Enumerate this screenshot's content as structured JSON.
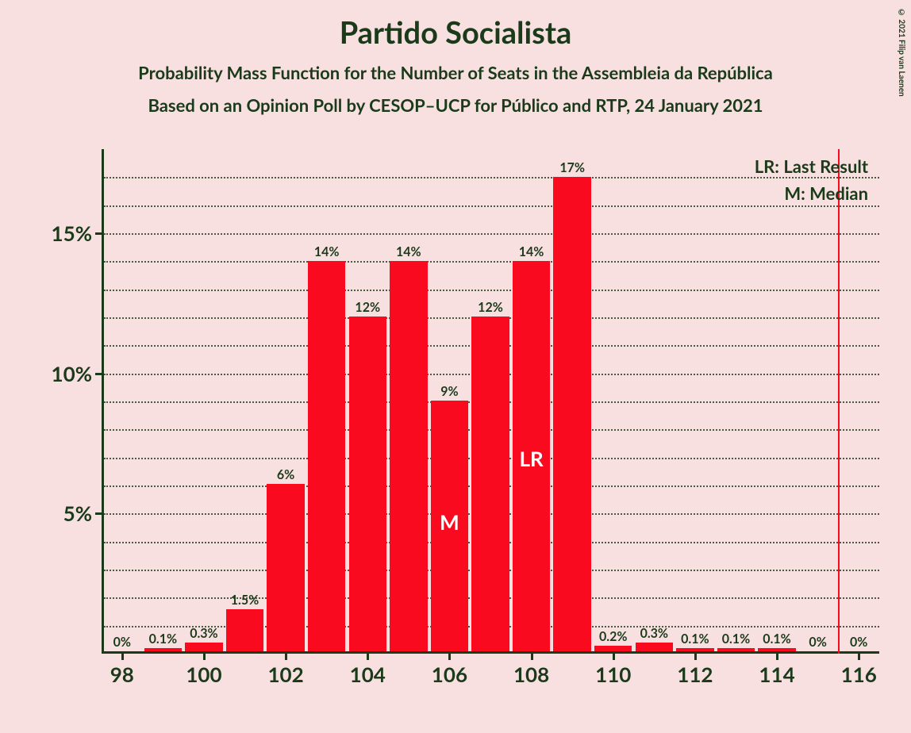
{
  "title": "Partido Socialista",
  "subtitle1": "Probability Mass Function for the Number of Seats in the Assembleia da República",
  "subtitle2": "Based on an Opinion Poll by CESOP–UCP for Público and RTP, 24 January 2021",
  "copyright": "© 2021 Filip van Laenen",
  "legend": {
    "lr": "LR: Last Result",
    "m": "M: Median"
  },
  "chart": {
    "type": "bar",
    "background_color": "#f8e0e0",
    "bar_color": "#fa0a1e",
    "text_color": "#1a3a1a",
    "grid_color": "#1a3a1a",
    "ylim": [
      0,
      18
    ],
    "y_ticks": [
      5,
      10,
      15
    ],
    "y_tick_labels": [
      "5%",
      "10%",
      "15%"
    ],
    "y_minor_step": 1,
    "x_ticks": [
      98,
      100,
      102,
      104,
      106,
      108,
      110,
      112,
      114,
      116
    ],
    "x_tick_labels": [
      "98",
      "100",
      "102",
      "104",
      "106",
      "108",
      "110",
      "112",
      "114",
      "116"
    ],
    "categories": [
      98,
      99,
      100,
      101,
      102,
      103,
      104,
      105,
      106,
      107,
      108,
      109,
      110,
      111,
      112,
      113,
      114,
      115,
      116
    ],
    "values": [
      0,
      0.1,
      0.3,
      1.5,
      6,
      14,
      12,
      14,
      9,
      12,
      14,
      17,
      0.2,
      0.3,
      0.1,
      0.1,
      0.1,
      0,
      0
    ],
    "value_labels": [
      "0%",
      "0.1%",
      "0.3%",
      "1.5%",
      "6%",
      "14%",
      "12%",
      "14%",
      "9%",
      "12%",
      "14%",
      "17%",
      "0.2%",
      "0.3%",
      "0.1%",
      "0.1%",
      "0.1%",
      "0%",
      "0%"
    ],
    "bar_width": 0.92,
    "median_index": 106,
    "median_label": "M",
    "last_result_index": 108,
    "last_result_label": "LR",
    "vline_position": 115.5,
    "label_fontsize": 16,
    "tick_fontsize": 26,
    "title_fontsize": 38,
    "subtitle_fontsize": 22
  }
}
